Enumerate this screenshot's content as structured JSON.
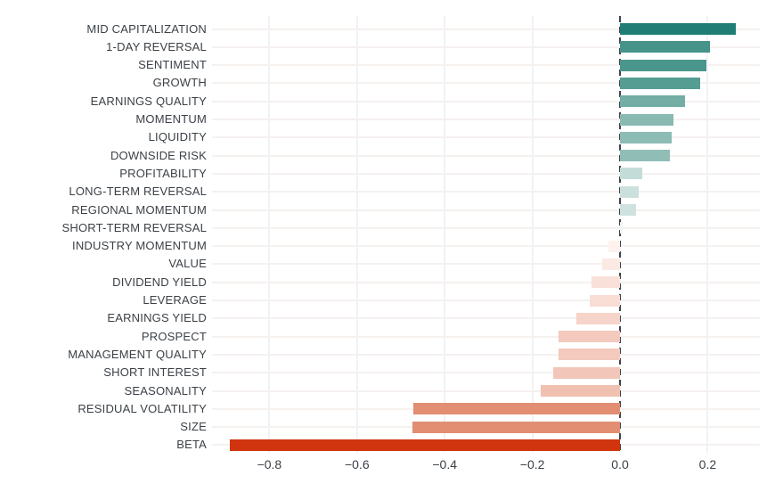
{
  "chart_data": {
    "type": "bar",
    "orientation": "horizontal",
    "title": "",
    "xlabel": "",
    "ylabel": "",
    "grid": true,
    "zero_line_style": "dashed",
    "legend": "none",
    "xlim": [
      -0.931,
      0.319
    ],
    "x_ticks": [
      -0.8,
      -0.6,
      -0.4,
      -0.2,
      0.0,
      0.2
    ],
    "x_tick_labels": [
      "−0.8",
      "−0.6",
      "−0.4",
      "−0.2",
      "0.0",
      "0.2"
    ],
    "bars": [
      {
        "label": "MID CAPITALIZATION",
        "value": 0.265,
        "color": "#1f7d75"
      },
      {
        "label": "1-DAY REVERSAL",
        "value": 0.205,
        "color": "#459389"
      },
      {
        "label": "SENTIMENT",
        "value": 0.197,
        "color": "#4a968c"
      },
      {
        "label": "GROWTH",
        "value": 0.182,
        "color": "#559c93"
      },
      {
        "label": "EARNINGS QUALITY",
        "value": 0.149,
        "color": "#73ada4"
      },
      {
        "label": "MOMENTUM",
        "value": 0.121,
        "color": "#89bab2"
      },
      {
        "label": "LIQUIDITY",
        "value": 0.117,
        "color": "#8dbcb5"
      },
      {
        "label": "DOWNSIDE RISK",
        "value": 0.114,
        "color": "#90beb7"
      },
      {
        "label": "PROFITABILITY",
        "value": 0.05,
        "color": "#c4dcd8"
      },
      {
        "label": "LONG-TERM REVERSAL",
        "value": 0.042,
        "color": "#cbe0dd"
      },
      {
        "label": "REGIONAL MOMENTUM",
        "value": 0.036,
        "color": "#cfe2df"
      },
      {
        "label": "SHORT-TERM REVERSAL",
        "value": 0.006,
        "color": "#eef5f4"
      },
      {
        "label": "INDUSTRY MOMENTUM",
        "value": -0.027,
        "color": "#fdf2ee"
      },
      {
        "label": "VALUE",
        "value": -0.041,
        "color": "#fbe9e3"
      },
      {
        "label": "DIVIDEND YIELD",
        "value": -0.066,
        "color": "#f9e0d8"
      },
      {
        "label": "LEVERAGE",
        "value": -0.07,
        "color": "#f9ded6"
      },
      {
        "label": "EARNINGS YIELD",
        "value": -0.099,
        "color": "#f6d4c9"
      },
      {
        "label": "PROSPECT",
        "value": -0.141,
        "color": "#f3cabd"
      },
      {
        "label": "MANAGEMENT QUALITY",
        "value": -0.14,
        "color": "#f3cabd"
      },
      {
        "label": "SHORT INTEREST",
        "value": -0.152,
        "color": "#f2c6b8"
      },
      {
        "label": "SEASONALITY",
        "value": -0.18,
        "color": "#f0c0b0"
      },
      {
        "label": "RESIDUAL VOLATILITY",
        "value": -0.472,
        "color": "#e18e72"
      },
      {
        "label": "SIZE",
        "value": -0.473,
        "color": "#e18e72"
      },
      {
        "label": "BETA",
        "value": -0.891,
        "color": "#d0350f"
      }
    ]
  },
  "colors": {
    "background": "#ffffff",
    "axis_text": "#3b4147",
    "grid_horizontal": "#f5f1ef",
    "grid_vertical": "#f2f2f2",
    "zero_line": "#3f444a",
    "positive_max": "#1f7d75",
    "negative_max": "#d0350f"
  }
}
